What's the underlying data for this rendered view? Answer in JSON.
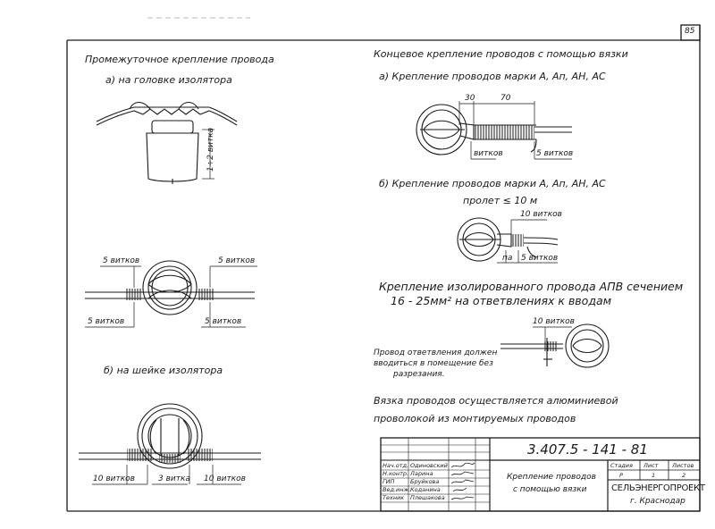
{
  "page_number": "85",
  "left_panel": {
    "title": "Промежуточное крепление провода",
    "sub_a": "а) на головке изолятора",
    "height_label": "1÷2 витка",
    "top_left_turns": "5 витков",
    "top_right_turns": "5 витков",
    "bottom_left_turns": "5 витков",
    "bottom_right_turns": "5 витков",
    "sub_b": "б) на шейке изолятора",
    "neck_left_turns": "10 витков",
    "neck_mid_turns": "3 витка",
    "neck_right_turns": "10 витков"
  },
  "right_panel": {
    "title": "Концевое крепление проводов с помощью вязки",
    "sub_a": "а) Крепление проводов марки А, Ап, АН, АС",
    "dim_30": "30",
    "dim_70": "70",
    "turns_left": "витков",
    "turns_right": "5 витков",
    "sub_b": "б) Крепление проводов марки А, Ап, АН, АС",
    "span": "пролет ≤ 10 м",
    "turns_10": "10 витков",
    "turns_pa": "па",
    "turns_5": "5 витков",
    "insulated_title_1": "Крепление изолированного провода АПВ сечением",
    "insulated_title_2": "16 - 25мм² на ответвлениях к вводам",
    "insulated_turns": "10 витков",
    "note_1": "Провод ответвления должен",
    "note_2": "вводиться в помещение без",
    "note_3": "разрезания.",
    "footer_1": "Вязка проводов осуществляется алюминиевой",
    "footer_2": "проволокой из монтируемых проводов"
  },
  "title_block": {
    "code": "3.407.5 - 141 - 81",
    "roles": [
      "Нач.отд.",
      "Н.контр.",
      "ГИП",
      "Вед.инж.",
      "Техник"
    ],
    "names": [
      "Одиновский",
      "Ларина",
      "Бруйкова",
      "Коданина",
      "Плешакова"
    ],
    "title_1": "Крепление проводов",
    "title_2": "с помощью вязки",
    "stage_label": "Стадия",
    "sheet_label": "Лист",
    "sheets_label": "Листов",
    "stage": "Р",
    "sheet": "1",
    "sheets": "2",
    "org": "СЕЛЬЭНЕРГОПРОЕКТ",
    "city": "г. Краснодар"
  }
}
